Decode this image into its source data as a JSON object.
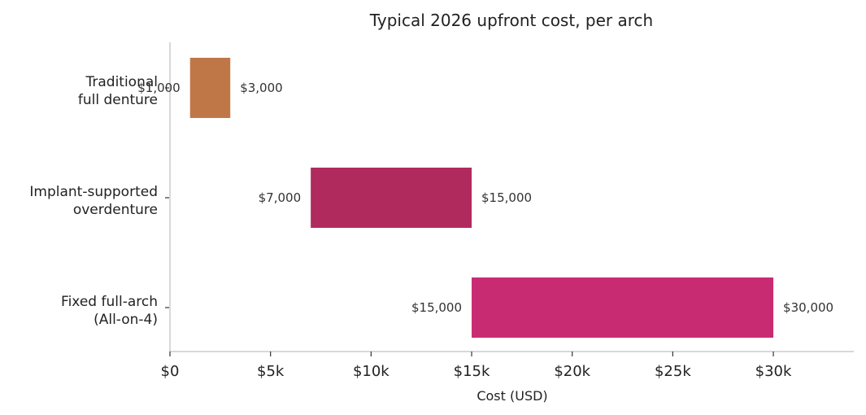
{
  "chart_data": {
    "type": "bar",
    "orientation": "horizontal",
    "title": "Typical 2026 upfront cost, per arch",
    "xlabel": "Cost (USD)",
    "ylabel": "",
    "xlim": [
      0,
      34000
    ],
    "x_ticks": [
      0,
      5000,
      10000,
      15000,
      20000,
      25000,
      30000
    ],
    "x_tick_labels": [
      "$0",
      "$5k",
      "$10k",
      "$15k",
      "$20k",
      "$25k",
      "$30k"
    ],
    "grid": false,
    "categories": [
      {
        "label_lines": [
          "Traditional",
          "full denture"
        ],
        "min": 1000,
        "max": 3000,
        "min_label": "$1,000",
        "max_label": "$3,000",
        "color": "#c07748"
      },
      {
        "label_lines": [
          "Implant-supported",
          "overdenture"
        ],
        "min": 7000,
        "max": 15000,
        "min_label": "$7,000",
        "max_label": "$15,000",
        "color": "#b02a5e"
      },
      {
        "label_lines": [
          "Fixed full-arch",
          "(All-on-4)"
        ],
        "min": 15000,
        "max": 30000,
        "min_label": "$15,000",
        "max_label": "$30,000",
        "color": "#c92b73"
      }
    ]
  }
}
